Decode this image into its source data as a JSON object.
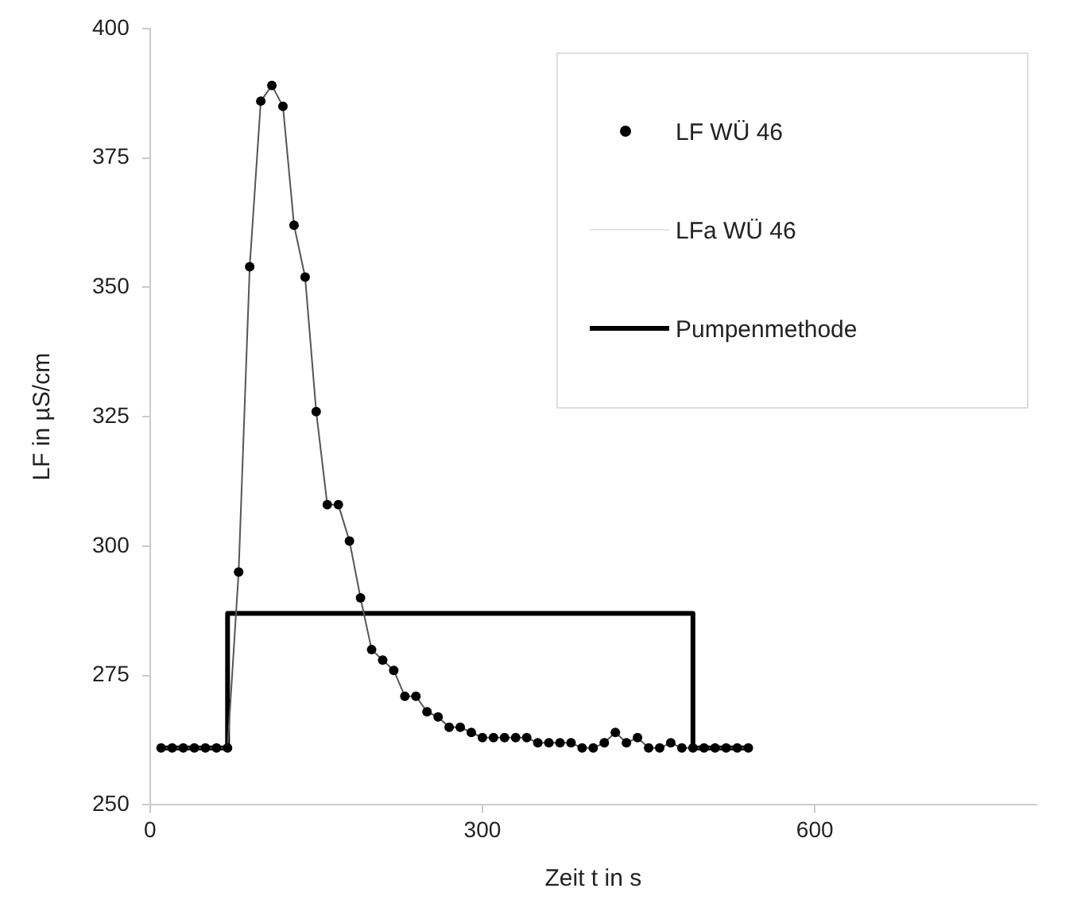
{
  "chart_data": {
    "type": "line",
    "xlabel": "Zeit t in s",
    "ylabel": "LF in µS/cm",
    "x": [
      10,
      20,
      30,
      40,
      50,
      60,
      70,
      80,
      90,
      100,
      110,
      120,
      130,
      140,
      150,
      160,
      170,
      180,
      190,
      200,
      210,
      220,
      230,
      240,
      250,
      260,
      270,
      280,
      290,
      300,
      310,
      320,
      330,
      340,
      350,
      360,
      370,
      380,
      390,
      400,
      410,
      420,
      430,
      440,
      450,
      460,
      470,
      480,
      490,
      500,
      510,
      520,
      530,
      540
    ],
    "series": [
      {
        "name": "LF WÜ 46",
        "type": "scatter",
        "marker": "circle",
        "color": "#000000",
        "values": [
          261,
          261,
          261,
          261,
          261,
          261,
          261,
          295,
          354,
          386,
          389,
          385,
          362,
          352,
          326,
          308,
          308,
          301,
          290,
          280,
          278,
          276,
          271,
          271,
          268,
          267,
          265,
          265,
          264,
          263,
          263,
          263,
          263,
          263,
          262,
          262,
          262,
          262,
          261,
          261,
          262,
          264,
          262,
          263,
          261,
          261,
          262,
          261,
          261,
          261,
          261,
          261,
          261,
          261
        ]
      },
      {
        "name": "LFa WÜ 46",
        "type": "line",
        "marker": "none",
        "color": "#555555",
        "values": [
          261,
          261,
          261,
          261,
          261,
          261,
          261,
          295,
          354,
          386,
          389,
          385,
          362,
          352,
          326,
          308,
          308,
          301,
          290,
          280,
          278,
          276,
          271,
          271,
          268,
          267,
          265,
          265,
          264,
          263,
          263,
          263,
          263,
          263,
          262,
          262,
          262,
          262,
          261,
          261,
          262,
          264,
          262,
          263,
          261,
          261,
          262,
          261,
          261,
          261,
          261,
          261,
          261,
          261
        ]
      },
      {
        "name": "Pumpenmethode",
        "type": "step",
        "marker": "none",
        "color": "#000000",
        "x": [
          10,
          70,
          490,
          540
        ],
        "values": [
          261,
          287,
          261,
          261
        ]
      }
    ],
    "xlim": [
      0,
      800
    ],
    "xticks": [
      0,
      300,
      600
    ],
    "ylim": [
      250,
      400
    ],
    "yticks": [
      250,
      275,
      300,
      325,
      350,
      375,
      400
    ],
    "grid": false,
    "legend": "top right"
  }
}
